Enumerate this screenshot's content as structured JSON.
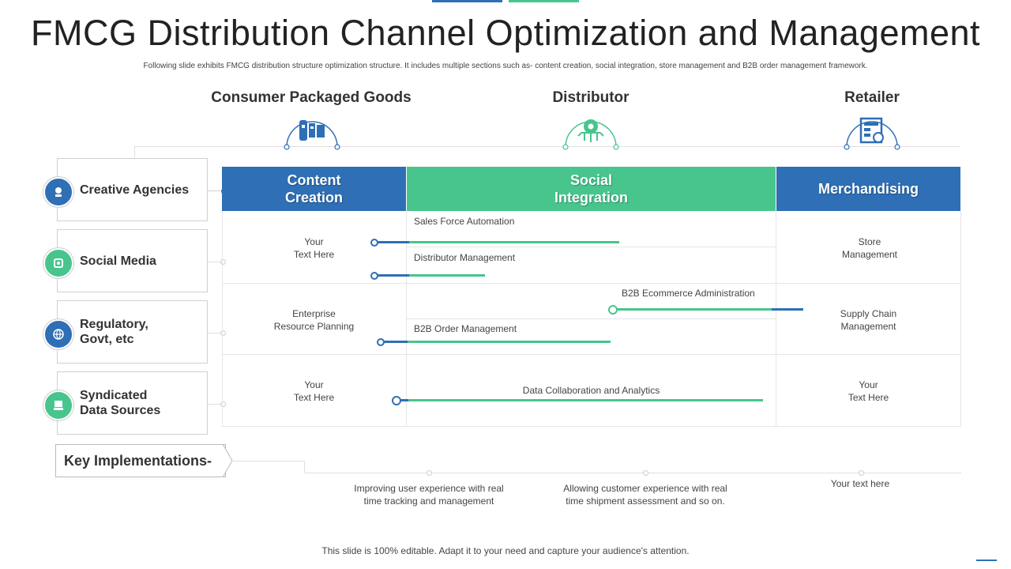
{
  "title": "FMCG Distribution Channel Optimization and Management",
  "subtitle": "Following slide exhibits FMCG  distribution structure optimization structure. It includes multiple  sections such as- content creation, social integration, store management  and B2B order management  framework.",
  "stakeholders": [
    {
      "label": "Consumer Packaged Goods",
      "icon": "goods-icon"
    },
    {
      "label": "Distributor",
      "icon": "gear-network-icon"
    },
    {
      "label": "Retailer",
      "icon": "store-document-icon"
    }
  ],
  "sources": [
    {
      "label": "Creative Agencies",
      "icon": "agency-icon",
      "color": "#2e6fb5"
    },
    {
      "label": "Social Media",
      "icon": "social-media-icon",
      "color": "#47c58d"
    },
    {
      "label": "Regulatory,\nGovt, etc",
      "icon": "globe-icon",
      "color": "#2e6fb5"
    },
    {
      "label": "Syndicated\nData Sources",
      "icon": "data-source-icon",
      "color": "#47c58d"
    }
  ],
  "headers": {
    "content_creation": "Content\nCreation",
    "social_integration": "Social\nIntegration",
    "merchandising": "Merchandising"
  },
  "left_cells": [
    "Your\nText Here",
    "Enterprise\nResource Planning",
    "Your\nText Here"
  ],
  "right_cells": [
    "Store\nManagement",
    "Supply Chain\nManagement",
    "Your\nText Here"
  ],
  "timeline_items": [
    {
      "label": "Sales Force Automation",
      "progress": 0.66
    },
    {
      "label": "Distributor Management",
      "progress": 0.3
    },
    {
      "label": "B2B Ecommerce Administration",
      "progress": 0.51
    },
    {
      "label": "B2B Order Management",
      "progress": 0.62
    },
    {
      "label": "Data Collaboration  and Analytics",
      "progress": 0.97
    }
  ],
  "key_implementations": {
    "label": "Key Implementations-",
    "notes": [
      "Improving  user experience with real\ntime tracking and management",
      "Allowing customer experience with real\ntime shipment assessment and so on.",
      "Your text here"
    ]
  },
  "footer": "This slide is 100% editable. Adapt it to your need and capture your audience's attention.",
  "colors": {
    "blue": "#2e6fb5",
    "green": "#47c58d"
  }
}
